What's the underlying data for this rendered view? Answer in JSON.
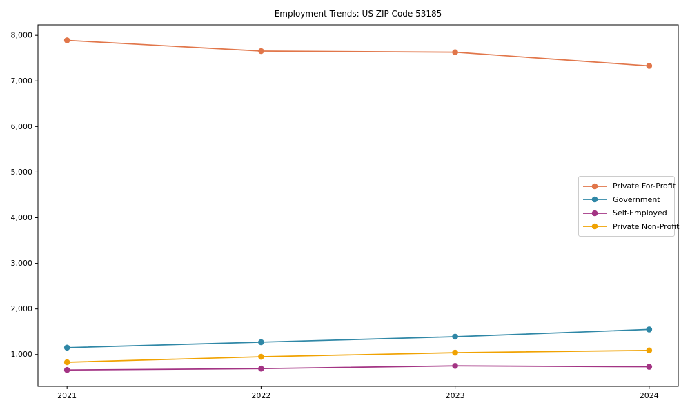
{
  "chart_data": {
    "type": "line",
    "title": "Employment Trends: US ZIP Code 53185",
    "xlabel": "",
    "ylabel": "",
    "x": [
      2021,
      2022,
      2023,
      2024
    ],
    "x_tick_labels": [
      "2021",
      "2022",
      "2023",
      "2024"
    ],
    "y_tick_values": [
      1000,
      2000,
      3000,
      4000,
      5000,
      6000,
      7000,
      8000
    ],
    "y_tick_labels": [
      "1,000",
      "2,000",
      "3,000",
      "4,000",
      "5,000",
      "6,000",
      "7,000",
      "8,000"
    ],
    "xlim": [
      2020.85,
      2024.15
    ],
    "ylim": [
      300,
      8230
    ],
    "grid": false,
    "legend_position": "center-right",
    "series": [
      {
        "name": "Private For-Profit",
        "color": "#E1764A",
        "marker": "circle",
        "values": [
          7890,
          7655,
          7630,
          7330
        ]
      },
      {
        "name": "Government",
        "color": "#2F87A6",
        "marker": "circle",
        "values": [
          1150,
          1270,
          1390,
          1550
        ]
      },
      {
        "name": "Self-Employed",
        "color": "#A33484",
        "marker": "circle",
        "values": [
          660,
          690,
          750,
          730
        ]
      },
      {
        "name": "Private Non-Profit",
        "color": "#F0A202",
        "marker": "circle",
        "values": [
          830,
          950,
          1040,
          1090
        ]
      }
    ],
    "axis_color": "#000000",
    "legend_border_color": "#cccccc"
  }
}
